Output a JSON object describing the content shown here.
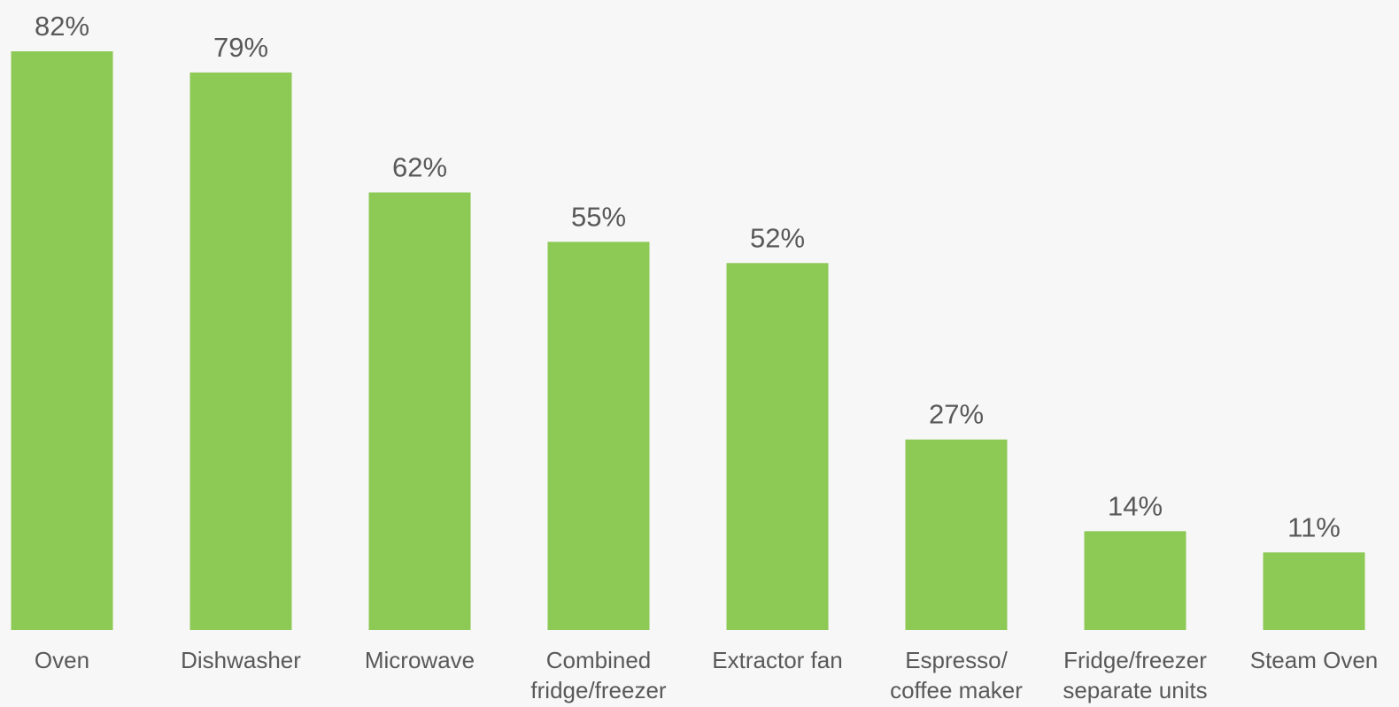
{
  "chart_data": {
    "type": "bar",
    "categories": [
      [
        "Oven"
      ],
      [
        "Dishwasher"
      ],
      [
        "Microwave"
      ],
      [
        "Combined",
        "fridge/freezer"
      ],
      [
        "Extractor fan"
      ],
      [
        "Espresso/",
        "coffee maker"
      ],
      [
        "Fridge/freezer",
        "separate units"
      ],
      [
        "Steam Oven"
      ]
    ],
    "values": [
      82,
      79,
      62,
      55,
      52,
      27,
      14,
      11
    ],
    "data_labels": [
      "82%",
      "79%",
      "62%",
      "55%",
      "52%",
      "27%",
      "14%",
      "11%"
    ],
    "title": "",
    "xlabel": "",
    "ylabel": "",
    "ylim": [
      0,
      82
    ],
    "grid": false,
    "colors": {
      "bar": "#8cc955",
      "text": "#595959",
      "background": "#f7f7f7"
    }
  }
}
